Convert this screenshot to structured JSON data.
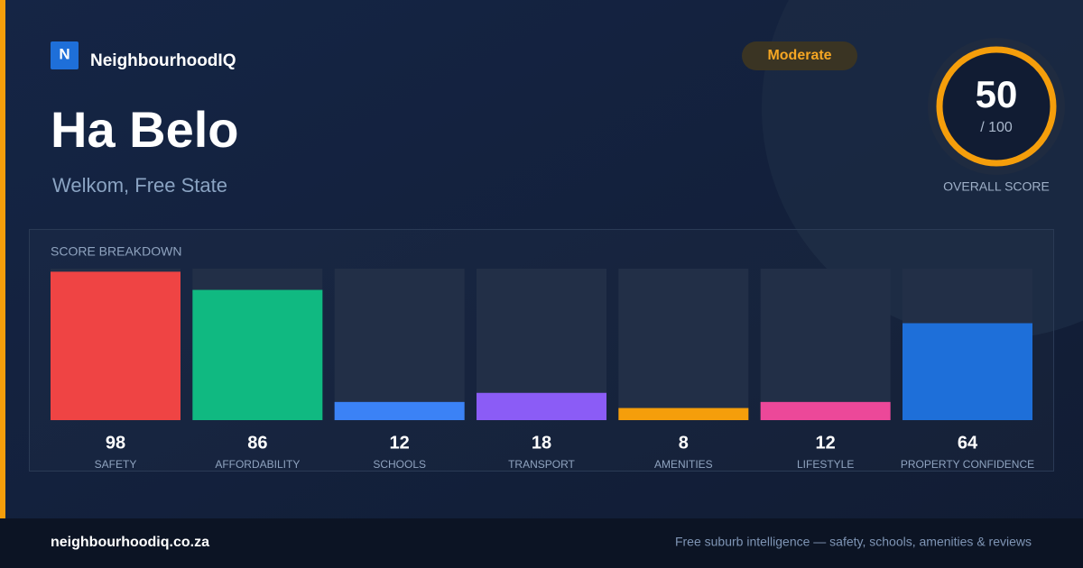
{
  "brand": "NeighbourhoodIQ",
  "logo_letter": "N",
  "title": "Ha Belo",
  "subtitle": "Welkom, Free State",
  "badge": "Moderate",
  "overall": {
    "score": "50",
    "max": "/ 100",
    "label": "OVERALL SCORE"
  },
  "chart_data": {
    "type": "bar",
    "title": "SCORE BREAKDOWN",
    "categories": [
      "SAFETY",
      "AFFORDABILITY",
      "SCHOOLS",
      "TRANSPORT",
      "AMENITIES",
      "LIFESTYLE",
      "PROPERTY CONFIDENCE"
    ],
    "values": [
      98,
      86,
      12,
      18,
      8,
      12,
      64
    ],
    "colors": [
      "#ef4444",
      "#10b981",
      "#3b82f6",
      "#8b5cf6",
      "#f59e0b",
      "#ec4899",
      "#1e6fd9"
    ],
    "ylim": [
      0,
      100
    ]
  },
  "footer": {
    "domain": "neighbourhoodiq.co.za",
    "tagline": "Free suburb intelligence — safety, schools, amenities & reviews"
  }
}
